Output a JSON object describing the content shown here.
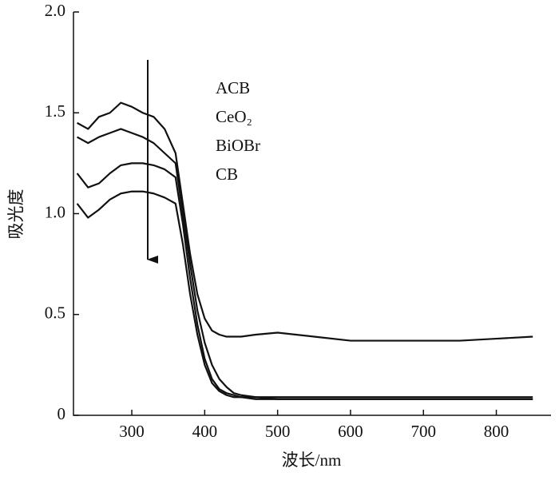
{
  "chart_data": {
    "type": "line",
    "x_label": "波长/nm",
    "y_label": "吸光度",
    "x": [
      225,
      240,
      255,
      270,
      285,
      300,
      315,
      330,
      345,
      360,
      370,
      380,
      390,
      400,
      410,
      420,
      430,
      440,
      450,
      470,
      500,
      550,
      600,
      650,
      700,
      750,
      800,
      850
    ],
    "series": [
      {
        "name": "ACB",
        "color": "#111111",
        "values": [
          1.45,
          1.42,
          1.48,
          1.5,
          1.55,
          1.53,
          1.5,
          1.48,
          1.42,
          1.3,
          1.05,
          0.8,
          0.6,
          0.48,
          0.42,
          0.4,
          0.39,
          0.39,
          0.39,
          0.4,
          0.41,
          0.39,
          0.37,
          0.37,
          0.37,
          0.37,
          0.38,
          0.39
        ]
      },
      {
        "name": "CeO₂",
        "color": "#111111",
        "values": [
          1.38,
          1.35,
          1.38,
          1.4,
          1.42,
          1.4,
          1.38,
          1.35,
          1.3,
          1.25,
          1.0,
          0.75,
          0.52,
          0.36,
          0.25,
          0.18,
          0.14,
          0.11,
          0.1,
          0.09,
          0.08,
          0.08,
          0.08,
          0.08,
          0.08,
          0.08,
          0.08,
          0.08
        ]
      },
      {
        "name": "BiOBr",
        "color": "#111111",
        "values": [
          1.2,
          1.13,
          1.15,
          1.2,
          1.24,
          1.25,
          1.25,
          1.24,
          1.22,
          1.18,
          0.95,
          0.68,
          0.45,
          0.28,
          0.18,
          0.13,
          0.11,
          0.1,
          0.09,
          0.09,
          0.09,
          0.09,
          0.09,
          0.09,
          0.09,
          0.09,
          0.09,
          0.09
        ]
      },
      {
        "name": "CB",
        "color": "#111111",
        "values": [
          1.05,
          0.98,
          1.02,
          1.07,
          1.1,
          1.11,
          1.11,
          1.1,
          1.08,
          1.05,
          0.85,
          0.6,
          0.4,
          0.25,
          0.16,
          0.12,
          0.1,
          0.09,
          0.09,
          0.08,
          0.08,
          0.08,
          0.08,
          0.08,
          0.08,
          0.08,
          0.08,
          0.08
        ]
      }
    ],
    "xlim": [
      220,
      875
    ],
    "ylim": [
      0,
      2
    ],
    "xticks": [
      300,
      400,
      500,
      600,
      700,
      800
    ],
    "yticks": [
      0,
      0.5,
      {
        "value": 1,
        "label": "1.0"
      },
      1.5,
      {
        "value": 2,
        "label": "2.0"
      }
    ]
  }
}
